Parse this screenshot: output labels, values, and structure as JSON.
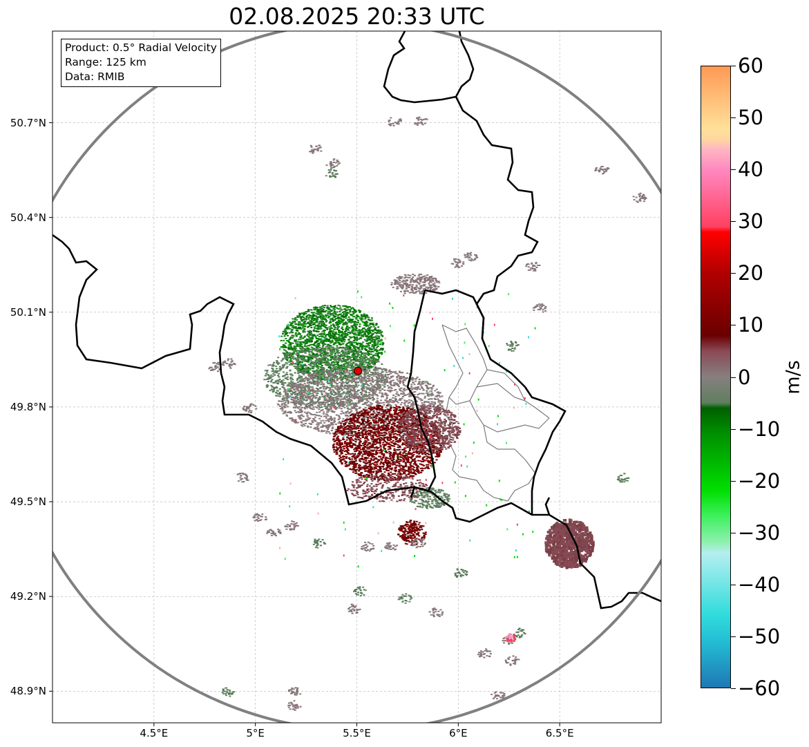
{
  "title": "02.08.2025 20:33 UTC",
  "info": {
    "product": "Product: 0.5° Radial Velocity",
    "range": "Range: 125 km",
    "data_source": "Data: RMIB"
  },
  "axes": {
    "lat_labels": [
      "50.7°N",
      "50.4°N",
      "50.1°N",
      "49.8°N",
      "49.5°N",
      "49.2°N",
      "48.9°N"
    ],
    "lat_values": [
      50.7,
      50.4,
      50.1,
      49.8,
      49.5,
      49.2,
      48.9
    ],
    "lon_labels": [
      "4.5°E",
      "5°E",
      "5.5°E",
      "6°E",
      "6.5°E"
    ],
    "lon_values": [
      4.5,
      5.0,
      5.5,
      6.0,
      6.5
    ],
    "lat_range": [
      48.8,
      50.99
    ],
    "lon_range": [
      4.0,
      7.0
    ],
    "grid": true
  },
  "radar": {
    "site_lon": 5.505,
    "site_lat": 49.914,
    "range_km": 125,
    "site_color": "#e00000"
  },
  "colorbar": {
    "label": "m/s",
    "min": -60,
    "max": 60,
    "ticks": [
      "60",
      "50",
      "40",
      "30",
      "20",
      "10",
      "0",
      "−10",
      "−20",
      "−30",
      "−40",
      "−50",
      "−60"
    ],
    "tick_values": [
      60,
      50,
      40,
      30,
      20,
      10,
      0,
      -10,
      -20,
      -30,
      -40,
      -50,
      -60
    ],
    "stops": [
      {
        "v": -60,
        "c": "#1f77b4"
      },
      {
        "v": -52,
        "c": "#22b7d2"
      },
      {
        "v": -46,
        "c": "#30dcdc"
      },
      {
        "v": -34,
        "c": "#b5eef0"
      },
      {
        "v": -32,
        "c": "#90f0b0"
      },
      {
        "v": -27,
        "c": "#40f060"
      },
      {
        "v": -22,
        "c": "#00e000"
      },
      {
        "v": -10,
        "c": "#008800"
      },
      {
        "v": -6,
        "c": "#005f00"
      },
      {
        "v": -5,
        "c": "#5f7f5f"
      },
      {
        "v": 0,
        "c": "#877f7f"
      },
      {
        "v": 5,
        "c": "#8a4a55"
      },
      {
        "v": 8,
        "c": "#6a0000"
      },
      {
        "v": 20,
        "c": "#b00000"
      },
      {
        "v": 28,
        "c": "#ff0000"
      },
      {
        "v": 29,
        "c": "#ff4060"
      },
      {
        "v": 40,
        "c": "#ff88c0"
      },
      {
        "v": 44,
        "c": "#ffb6c1"
      },
      {
        "v": 46,
        "c": "#ffd8a0"
      },
      {
        "v": 48,
        "c": "#ffe098"
      },
      {
        "v": 60,
        "c": "#ff9955"
      }
    ]
  },
  "colors": {
    "border": "#000000",
    "province_lines": "#7a7a7a",
    "range_ring": "#808080",
    "grid": "#b0b0b0"
  }
}
